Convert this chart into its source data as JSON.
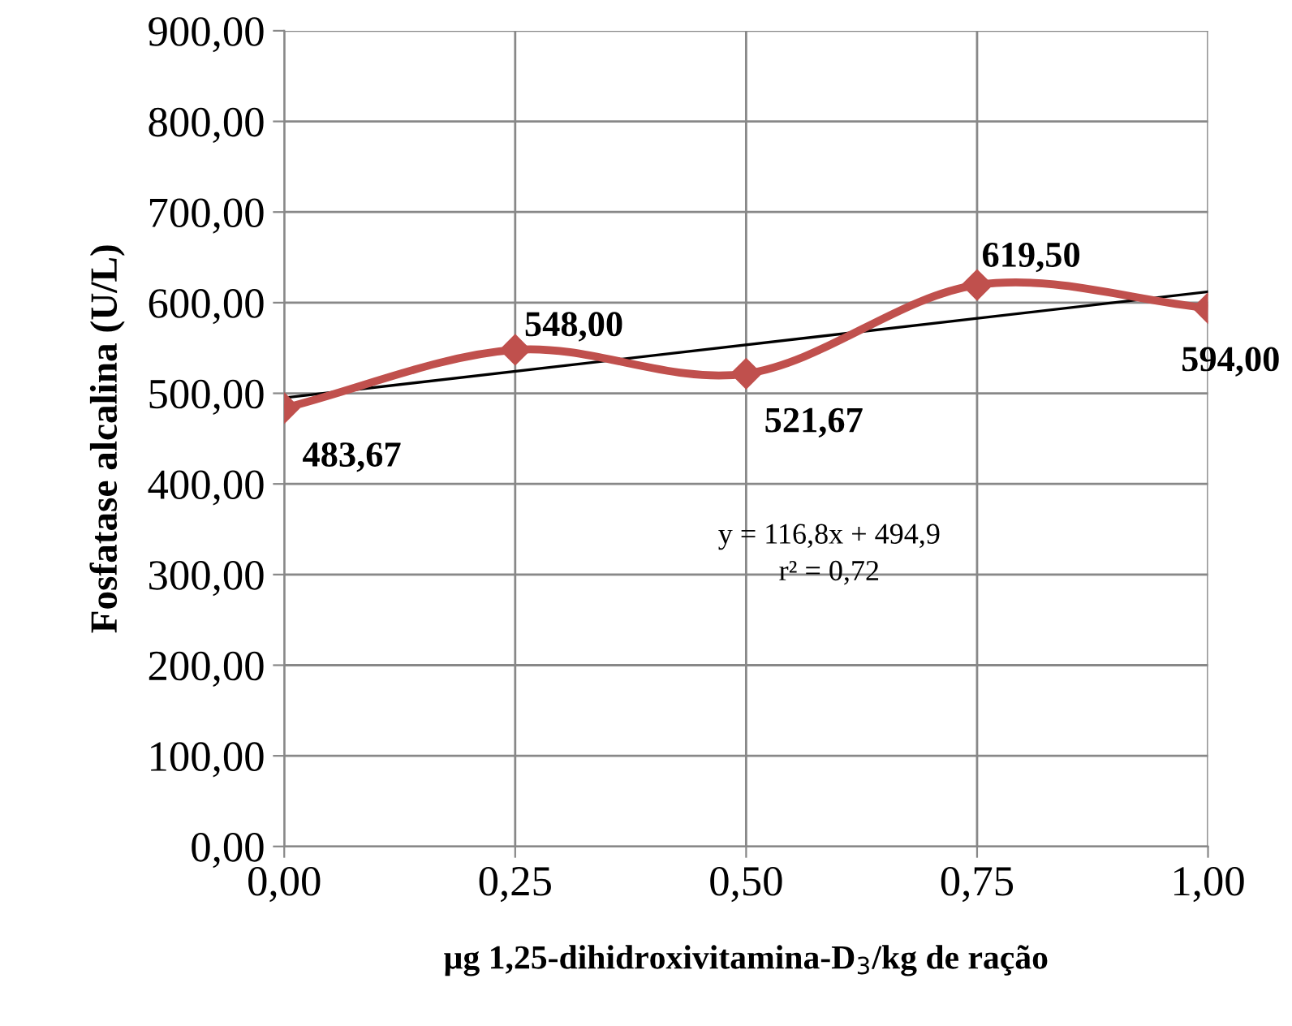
{
  "chart_data": {
    "type": "line",
    "xlabel": "µg 1,25-dihidroxivitamina-D$_{3}$/kg de ração",
    "ylabel": "Fosfatase alcalina (U/L)",
    "x": [
      0,
      0.25,
      0.5,
      0.75,
      1.0
    ],
    "series": [
      {
        "color": "#c0504d",
        "marker": "diamond",
        "line_style": "solid",
        "values": [
          483.67,
          548.0,
          521.67,
          619.5,
          594.0
        ],
        "value_labels": [
          "483,67",
          "548,00",
          "521,67",
          "619,50",
          "594,00"
        ]
      },
      {
        "color": "#000000",
        "marker": "none",
        "line_style": "solid",
        "x": [
          0,
          1.0
        ],
        "values": [
          495,
          612
        ]
      }
    ],
    "annotations": [
      "y = 116,8x + 494,9",
      "r² = 0,72"
    ],
    "xlim": [
      0,
      1.0
    ],
    "xticks": [
      {
        "value": 0,
        "label": "0,00"
      },
      {
        "value": 0.25,
        "label": "0,25"
      },
      {
        "value": 0.5,
        "label": "0,50"
      },
      {
        "value": 0.75,
        "label": "0,75"
      },
      {
        "value": 1.0,
        "label": "1,00"
      }
    ],
    "ylim": [
      0,
      900
    ],
    "yticks": [
      {
        "value": 0,
        "label": "0,00"
      },
      {
        "value": 100,
        "label": "100,00"
      },
      {
        "value": 200,
        "label": "200,00"
      },
      {
        "value": 300,
        "label": "300,00"
      },
      {
        "value": 400,
        "label": "400,00"
      },
      {
        "value": 500,
        "label": "500,00"
      },
      {
        "value": 600,
        "label": "600,00"
      },
      {
        "value": 700,
        "label": "700,00"
      },
      {
        "value": 800,
        "label": "800,00"
      },
      {
        "value": 900,
        "label": "900,00"
      }
    ],
    "grid": true,
    "legend": false
  }
}
